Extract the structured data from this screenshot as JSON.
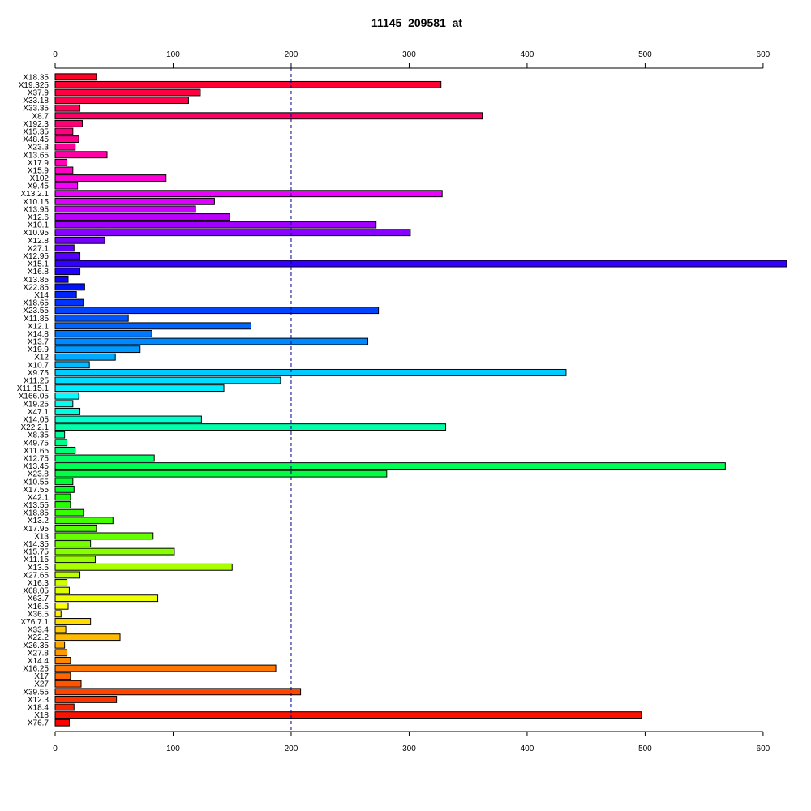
{
  "chart_data": {
    "type": "bar",
    "orientation": "horizontal",
    "title": "11145_209581_at",
    "xlabel": "",
    "ylabel": "",
    "xlim": [
      0,
      620
    ],
    "x_ticks": [
      0,
      100,
      200,
      300,
      400,
      500,
      600
    ],
    "x_tick_labels": [
      "0",
      "100",
      "200",
      "300",
      "400",
      "500",
      "600"
    ],
    "reference_line": 200,
    "reference_line_style": "dashed",
    "reference_line_color": "#00008B",
    "grid": false,
    "legend": "none",
    "categories": [
      "X18.35",
      "X19.325",
      "X37.9",
      "X33.18",
      "X33.35",
      "X8.7",
      "X192.3",
      "X15.35",
      "X48.45",
      "X23.3",
      "X13.65",
      "X17.9",
      "X15.9",
      "X102",
      "X9.45",
      "X13.2.1",
      "X10.15",
      "X13.95",
      "X12.6",
      "X10.1",
      "X10.95",
      "X12.8",
      "X27.1",
      "X12.95",
      "X15.1",
      "X16.8",
      "X13.85",
      "X22.85",
      "X14",
      "X18.65",
      "X23.55",
      "X11.85",
      "X12.1",
      "X14.8",
      "X13.7",
      "X19.9",
      "X12",
      "X10.7",
      "X9.75",
      "X11.25",
      "X11.15.1",
      "X166.05",
      "X19.25",
      "X47.1",
      "X14.05",
      "X22.2.1",
      "X8.35",
      "X49.75",
      "X11.65",
      "X12.75",
      "X13.45",
      "X23.8",
      "X10.55",
      "X17.55",
      "X42.1",
      "X13.55",
      "X18.85",
      "X13.2",
      "X17.95",
      "X13",
      "X14.35",
      "X15.75",
      "X11.15",
      "X13.5",
      "X27.65",
      "X16.3",
      "X68.05",
      "X63.7",
      "X16.5",
      "X36.5",
      "X76.7.1",
      "X33.4",
      "X22.2",
      "X26.35",
      "X27.8",
      "X14.4",
      "X16.25",
      "X17",
      "X27",
      "X39.55",
      "X12.3",
      "X18.4",
      "X18",
      "X76.7"
    ],
    "values": [
      35,
      327,
      123,
      113,
      21,
      362,
      23,
      15,
      20,
      17,
      44,
      10,
      15,
      94,
      19,
      328,
      135,
      119,
      148,
      272,
      301,
      42,
      16,
      21,
      620,
      21,
      11,
      25,
      18,
      24,
      274,
      62,
      166,
      82,
      265,
      72,
      51,
      29,
      433,
      191,
      143,
      20,
      15,
      21,
      124,
      331,
      8,
      10,
      17,
      84,
      568,
      281,
      15,
      16,
      13,
      13,
      24,
      49,
      35,
      83,
      30,
      101,
      34,
      150,
      21,
      10,
      12,
      87,
      11,
      5,
      30,
      9,
      55,
      8,
      10,
      13,
      187,
      13,
      22,
      208,
      52,
      16,
      497,
      12
    ],
    "colors": [
      "#FF0026",
      "#FF0033",
      "#FF0040",
      "#FF004D",
      "#FF005A",
      "#FF0066",
      "#FF0073",
      "#FF0080",
      "#FF008D",
      "#FF009A",
      "#FF00A6",
      "#FF00B3",
      "#FF00C0",
      "#FF00D9",
      "#F700FF",
      "#EC00FF",
      "#DD00FF",
      "#CC00FF",
      "#BB00FF",
      "#A000FF",
      "#8800FF",
      "#7700FF",
      "#6600FF",
      "#5500FF",
      "#3300FF",
      "#2200FF",
      "#1100FF",
      "#0011FF",
      "#0022FF",
      "#0033FF",
      "#0044FF",
      "#0055FF",
      "#0066FF",
      "#0077FF",
      "#0088FF",
      "#0099FF",
      "#00AAFF",
      "#00BBFF",
      "#00CCFF",
      "#00DDFF",
      "#00EEFF",
      "#00FFFF",
      "#00FFEE",
      "#00FFDD",
      "#00FFCC",
      "#00FFAA",
      "#00FF99",
      "#00FF88",
      "#00FF77",
      "#00FF66",
      "#00FF55",
      "#00FF44",
      "#00FF33",
      "#00FF22",
      "#11FF00",
      "#22FF00",
      "#33FF00",
      "#44FF00",
      "#55FF00",
      "#66FF00",
      "#77FF00",
      "#88FF00",
      "#99FF00",
      "#AAFF00",
      "#BBFF00",
      "#CCFF00",
      "#DDFF00",
      "#EEFF00",
      "#FFFF00",
      "#FFEE00",
      "#FFDD00",
      "#FFCC00",
      "#FFBB00",
      "#FFAA00",
      "#FF9900",
      "#FF8800",
      "#FF7700",
      "#FF6600",
      "#FF5500",
      "#FF4400",
      "#FF3300",
      "#FF2200",
      "#FF1100",
      "#FF0000"
    ]
  }
}
